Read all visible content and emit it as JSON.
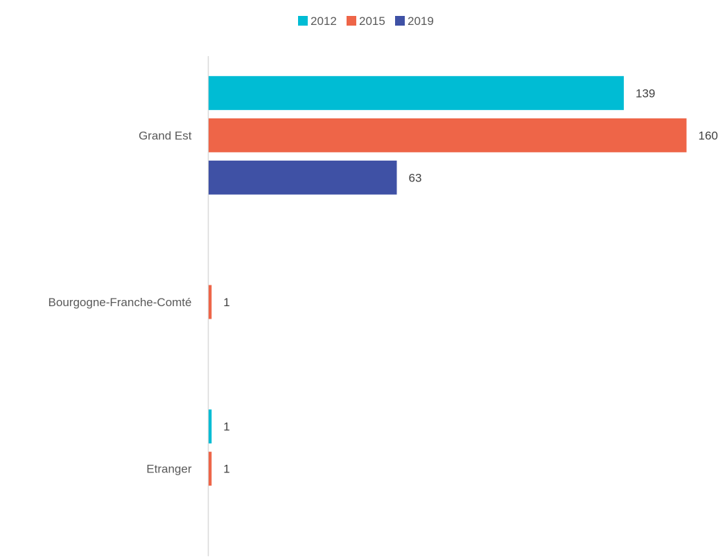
{
  "chart_data": {
    "type": "bar",
    "orientation": "horizontal",
    "title": "",
    "xlabel": "",
    "ylabel": "",
    "categories": [
      "Grand Est",
      "Bourgogne-Franche-Comté",
      "Etranger"
    ],
    "series": [
      {
        "name": "2012",
        "color": "#00BCD4",
        "values": [
          139,
          null,
          1
        ]
      },
      {
        "name": "2015",
        "color": "#EE6548",
        "values": [
          160,
          1,
          1
        ]
      },
      {
        "name": "2019",
        "color": "#3F51A5",
        "values": [
          63,
          null,
          null
        ]
      }
    ],
    "xlim": [
      0,
      160
    ],
    "legend_position": "top-center",
    "grid": false,
    "data_labels": true,
    "x_axis_visible": false
  }
}
